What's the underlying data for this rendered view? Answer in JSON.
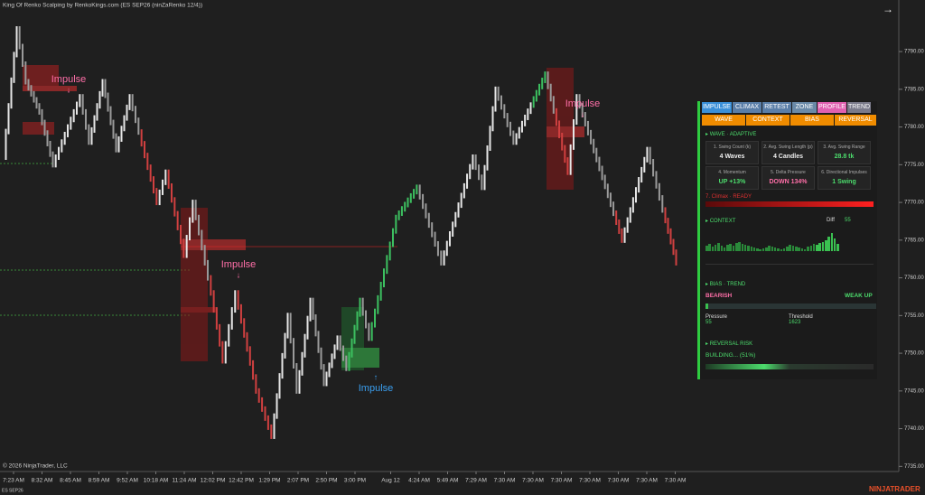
{
  "header": {
    "title": "King Of Renko Scalping by RenkoKings.com (ES SEP26 (ninZaRenko 12/4))"
  },
  "chart_data": {
    "type": "renko",
    "ylim": [
      7734.8,
      7796
    ],
    "yticks": [
      {
        "value": 7790,
        "label": "7790.00"
      },
      {
        "value": 7785,
        "label": "7785.00"
      },
      {
        "value": 7780,
        "label": "7780.00"
      },
      {
        "value": 7775,
        "label": "7775.00"
      },
      {
        "value": 7770,
        "label": "7770.00"
      },
      {
        "value": 7765,
        "label": "7765.00"
      },
      {
        "value": 7760,
        "label": "7760.00"
      },
      {
        "value": 7755,
        "label": "7755.00"
      },
      {
        "value": 7750,
        "label": "7750.00"
      },
      {
        "value": 7745,
        "label": "7745.00"
      },
      {
        "value": 7740,
        "label": "7740.00"
      },
      {
        "value": 7735,
        "label": "7735.00"
      }
    ],
    "categories": [
      "7:23 AM",
      "8:32 AM",
      "8:45 AM",
      "8:59 AM",
      "9:52 AM",
      "10:18 AM",
      "11:24 AM",
      "12:02 PM",
      "12:42 PM",
      "1:29 PM",
      "2:07 PM",
      "2:50 PM",
      "3:00 PM",
      "Aug 12",
      "4:24 AM",
      "5:49 AM",
      "7:29 AM",
      "7:30 AM",
      "7:30 AM",
      "7:30 AM",
      "7:30 AM",
      "7:30 AM",
      "7:30 AM",
      "7:30 AM"
    ],
    "swings": [
      7776,
      7793,
      7786,
      7782,
      7775,
      7784,
      7778,
      7786,
      7777,
      7784,
      7770,
      7774,
      7763,
      7770,
      7758,
      7749,
      7758,
      7745,
      7739,
      7755,
      7745,
      7757,
      7746,
      7752,
      7748,
      7757,
      7752,
      7768,
      7772,
      7762,
      7776,
      7772,
      7785,
      7778,
      7787,
      7774,
      7784,
      7765,
      7777,
      7769,
      7762
    ],
    "annotations": [
      "Impulse",
      "Impulse",
      "Impulse",
      "Impulse"
    ]
  },
  "footer": {
    "copyright": "© 2026 NinjaTrader, LLC",
    "instrument": "ES SEP26",
    "brand": "NINJATRADER"
  },
  "panel": {
    "tabs": [
      "IMPULSE",
      "CLIMAX",
      "RETEST",
      "ZONE",
      "PROFILE",
      "TREND"
    ],
    "subtabs": [
      "WAVE",
      "CONTEXT",
      "BIAS",
      "REVERSAL"
    ],
    "wave_title": "WAVE · ADAPTIVE",
    "stats": [
      {
        "label": "1. Swing Count (k)",
        "value": "4 Waves"
      },
      {
        "label": "2. Avg. Swing Length (p)",
        "value": "4 Candles"
      },
      {
        "label": "3. Avg. Swing Range",
        "value": "28.8 tk"
      },
      {
        "label": "4. Momentum",
        "value": "UP +13%"
      },
      {
        "label": "5. Delta Pressure",
        "value": "DOWN 134%"
      },
      {
        "label": "6. Directional Impulses",
        "value": "1 Swing"
      }
    ],
    "climax": "7. Climax · READY",
    "context_title": "CONTEXT",
    "diff_label": "Diff",
    "diff_value": "55",
    "bias_title": "BIAS · TREND",
    "bias_left": "BEARISH",
    "bias_right": "WEAK UP",
    "pressure_label": "Pressure",
    "pressure_value": "55",
    "threshold_label": "Threshold",
    "threshold_value": "1623",
    "reversal_title": "REVERSAL RISK",
    "reversal_value": "BUILDING... (51%)"
  }
}
